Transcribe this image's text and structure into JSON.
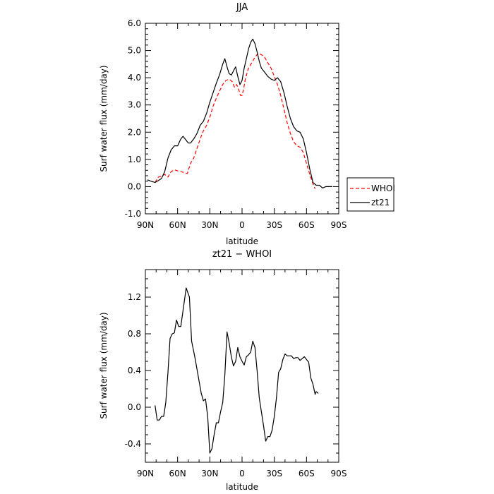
{
  "chart_data": [
    {
      "type": "line",
      "title": "JJA",
      "xlabel": "latitude",
      "ylabel": "Surf water flux (mm/day)",
      "xlim": [
        90,
        -90
      ],
      "ylim": [
        -1.0,
        6.0
      ],
      "x_ticks": [
        90,
        60,
        30,
        0,
        -30,
        -60,
        -90
      ],
      "x_tick_labels": [
        "90N",
        "60N",
        "30N",
        "0",
        "30S",
        "60S",
        "90S"
      ],
      "y_ticks": [
        -1.0,
        0.0,
        1.0,
        2.0,
        3.0,
        4.0,
        5.0,
        6.0
      ],
      "y_tick_labels": [
        "-1.0",
        "0.0",
        "1.0",
        "2.0",
        "3.0",
        "4.0",
        "5.0",
        "6.0"
      ],
      "legend_position": "outside-right",
      "series": [
        {
          "name": "WHOI",
          "color": "#ff0000",
          "dash": "dashed",
          "points": [
            [
              81,
              0.15
            ],
            [
              78,
              0.35
            ],
            [
              75,
              0.38
            ],
            [
              72,
              0.45
            ],
            [
              69,
              0.35
            ],
            [
              66,
              0.55
            ],
            [
              63,
              0.62
            ],
            [
              60,
              0.58
            ],
            [
              57,
              0.55
            ],
            [
              54,
              0.52
            ],
            [
              51,
              0.48
            ],
            [
              48,
              0.85
            ],
            [
              45,
              1.05
            ],
            [
              42,
              1.4
            ],
            [
              39,
              1.75
            ],
            [
              36,
              2.05
            ],
            [
              33,
              2.25
            ],
            [
              30,
              2.55
            ],
            [
              27,
              2.95
            ],
            [
              24,
              3.25
            ],
            [
              21,
              3.5
            ],
            [
              18,
              3.75
            ],
            [
              15,
              3.9
            ],
            [
              12,
              3.95
            ],
            [
              9,
              3.85
            ],
            [
              7,
              3.65
            ],
            [
              5,
              3.75
            ],
            [
              3,
              3.55
            ],
            [
              1.5,
              3.35
            ],
            [
              0,
              3.35
            ],
            [
              -1.5,
              3.6
            ],
            [
              -3,
              3.95
            ],
            [
              -6,
              4.35
            ],
            [
              -9,
              4.55
            ],
            [
              -12,
              4.75
            ],
            [
              -15,
              4.9
            ],
            [
              -18,
              4.85
            ],
            [
              -21,
              4.75
            ],
            [
              -24,
              4.55
            ],
            [
              -27,
              4.35
            ],
            [
              -30,
              4.05
            ],
            [
              -33,
              3.75
            ],
            [
              -36,
              3.35
            ],
            [
              -39,
              2.85
            ],
            [
              -42,
              2.35
            ],
            [
              -45,
              1.95
            ],
            [
              -48,
              1.65
            ],
            [
              -51,
              1.5
            ],
            [
              -54,
              1.45
            ],
            [
              -57,
              1.25
            ],
            [
              -60,
              0.85
            ],
            [
              -63,
              0.45
            ],
            [
              -66,
              0.1
            ],
            [
              -68,
              -0.08
            ]
          ]
        },
        {
          "name": "zt21",
          "color": "#000000",
          "dash": "solid",
          "points": [
            [
              88,
              0.25
            ],
            [
              85,
              0.2
            ],
            [
              81,
              0.15
            ],
            [
              78,
              0.22
            ],
            [
              75,
              0.3
            ],
            [
              72,
              0.55
            ],
            [
              69,
              1.05
            ],
            [
              66,
              1.35
            ],
            [
              63,
              1.5
            ],
            [
              60,
              1.5
            ],
            [
              57,
              1.75
            ],
            [
              55,
              1.85
            ],
            [
              53,
              1.75
            ],
            [
              50,
              1.6
            ],
            [
              48,
              1.6
            ],
            [
              45,
              1.75
            ],
            [
              42,
              1.95
            ],
            [
              39,
              2.25
            ],
            [
              36,
              2.4
            ],
            [
              33,
              2.7
            ],
            [
              30,
              3.1
            ],
            [
              27,
              3.45
            ],
            [
              24,
              3.8
            ],
            [
              21,
              4.1
            ],
            [
              18,
              4.5
            ],
            [
              16,
              4.7
            ],
            [
              14,
              4.4
            ],
            [
              12,
              4.15
            ],
            [
              10,
              4.1
            ],
            [
              8,
              4.25
            ],
            [
              6,
              4.4
            ],
            [
              4,
              4.05
            ],
            [
              2,
              3.75
            ],
            [
              0,
              3.9
            ],
            [
              -2,
              4.35
            ],
            [
              -4,
              4.7
            ],
            [
              -6,
              5.05
            ],
            [
              -8,
              5.3
            ],
            [
              -10,
              5.42
            ],
            [
              -12,
              5.25
            ],
            [
              -14,
              4.95
            ],
            [
              -16,
              4.6
            ],
            [
              -18,
              4.35
            ],
            [
              -21,
              4.2
            ],
            [
              -24,
              4.05
            ],
            [
              -27,
              3.95
            ],
            [
              -30,
              3.9
            ],
            [
              -33,
              4.0
            ],
            [
              -36,
              3.85
            ],
            [
              -39,
              3.45
            ],
            [
              -42,
              2.95
            ],
            [
              -45,
              2.5
            ],
            [
              -48,
              2.2
            ],
            [
              -51,
              2.05
            ],
            [
              -54,
              2.0
            ],
            [
              -57,
              1.75
            ],
            [
              -60,
              1.25
            ],
            [
              -63,
              0.65
            ],
            [
              -66,
              0.15
            ],
            [
              -69,
              0.05
            ],
            [
              -72,
              0.05
            ],
            [
              -75,
              -0.05
            ],
            [
              -78,
              0.0
            ],
            [
              -81,
              0.0
            ],
            [
              -84,
              0.0
            ]
          ]
        }
      ]
    },
    {
      "type": "line",
      "title": "zt21 − WHOI",
      "xlabel": "latitude",
      "ylabel": "Surf water flux (mm/day)",
      "xlim": [
        90,
        -90
      ],
      "ylim": [
        -0.6,
        1.5
      ],
      "x_ticks": [
        90,
        60,
        30,
        0,
        -30,
        -60,
        -90
      ],
      "x_tick_labels": [
        "90N",
        "60N",
        "30N",
        "0",
        "30S",
        "60S",
        "90S"
      ],
      "y_ticks": [
        -0.4,
        0.0,
        0.4,
        0.8,
        1.2
      ],
      "y_tick_labels": [
        "-0.4",
        "0.0",
        "0.4",
        "0.8",
        "1.2"
      ],
      "series": [
        {
          "color": "#000000",
          "dash": "solid",
          "points": [
            [
              81,
              0.02
            ],
            [
              79,
              -0.14
            ],
            [
              77,
              -0.14
            ],
            [
              75,
              -0.1
            ],
            [
              73,
              -0.1
            ],
            [
              71,
              0.05
            ],
            [
              69,
              0.38
            ],
            [
              67,
              0.75
            ],
            [
              65,
              0.8
            ],
            [
              63,
              0.81
            ],
            [
              61,
              0.95
            ],
            [
              59,
              0.88
            ],
            [
              57,
              0.88
            ],
            [
              55,
              1.05
            ],
            [
              52,
              1.3
            ],
            [
              49,
              1.2
            ],
            [
              47,
              0.72
            ],
            [
              44,
              0.55
            ],
            [
              41,
              0.35
            ],
            [
              38,
              0.15
            ],
            [
              36,
              0.07
            ],
            [
              34,
              0.09
            ],
            [
              32,
              -0.1
            ],
            [
              30,
              -0.5
            ],
            [
              28,
              -0.45
            ],
            [
              26,
              -0.3
            ],
            [
              24,
              -0.17
            ],
            [
              22,
              -0.17
            ],
            [
              20,
              -0.05
            ],
            [
              18,
              0.05
            ],
            [
              16,
              0.35
            ],
            [
              14,
              0.82
            ],
            [
              12,
              0.7
            ],
            [
              10,
              0.55
            ],
            [
              8,
              0.45
            ],
            [
              6,
              0.5
            ],
            [
              4,
              0.65
            ],
            [
              2,
              0.55
            ],
            [
              0,
              0.5
            ],
            [
              -2,
              0.46
            ],
            [
              -4,
              0.55
            ],
            [
              -6,
              0.57
            ],
            [
              -8,
              0.6
            ],
            [
              -10,
              0.72
            ],
            [
              -12,
              0.65
            ],
            [
              -14,
              0.4
            ],
            [
              -16,
              0.1
            ],
            [
              -18,
              -0.05
            ],
            [
              -20,
              -0.2
            ],
            [
              -22,
              -0.37
            ],
            [
              -24,
              -0.32
            ],
            [
              -26,
              -0.32
            ],
            [
              -28,
              -0.25
            ],
            [
              -30,
              -0.1
            ],
            [
              -32,
              0.1
            ],
            [
              -34,
              0.38
            ],
            [
              -36,
              0.42
            ],
            [
              -38,
              0.52
            ],
            [
              -40,
              0.58
            ],
            [
              -42,
              0.56
            ],
            [
              -44,
              0.56
            ],
            [
              -46,
              0.56
            ],
            [
              -48,
              0.53
            ],
            [
              -50,
              0.54
            ],
            [
              -52,
              0.54
            ],
            [
              -54,
              0.51
            ],
            [
              -56,
              0.53
            ],
            [
              -58,
              0.55
            ],
            [
              -60,
              0.52
            ],
            [
              -62,
              0.49
            ],
            [
              -64,
              0.32
            ],
            [
              -66,
              0.25
            ],
            [
              -68,
              0.14
            ],
            [
              -69,
              0.17
            ],
            [
              -71,
              0.15
            ]
          ]
        }
      ]
    }
  ]
}
